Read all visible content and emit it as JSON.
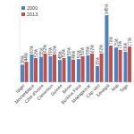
{
  "chart_data": {
    "type": "bar",
    "categories": [
      "Niger",
      "Mozambique",
      "Côte d'Ivoire",
      "Cameroun",
      "Guinée",
      "Bénin",
      "Burkina Faso",
      "Madagascar",
      "Cap-Vert",
      "Sénégal",
      "Mali",
      "Togo"
    ],
    "series": [
      {
        "name": "2000",
        "color": "#4f81bd",
        "values": [
          38,
          60,
          55,
          56,
          48,
          56,
          50,
          58,
          35,
          145,
          75,
          66
        ],
        "value_labels": [
          "38%",
          "60%",
          "55%",
          "56%",
          "48%",
          "56%",
          "50%",
          "58%",
          "35%",
          "145%",
          "75%",
          "66%"
        ]
      },
      {
        "name": "2013",
        "color": "#c0504d",
        "values": [
          44,
          52,
          62,
          60,
          52,
          49,
          56,
          62,
          62,
          79,
          70,
          77
        ],
        "value_labels": [
          "44%",
          "52%",
          "62%",
          "60%",
          "52%",
          "49%",
          "56%",
          "62%",
          "62%",
          "79%",
          "70%",
          "77%"
        ]
      }
    ],
    "ylim": [
      0,
      170
    ],
    "grid": false,
    "legend": "top-left",
    "data_labels": true,
    "tick_labels": "x"
  }
}
